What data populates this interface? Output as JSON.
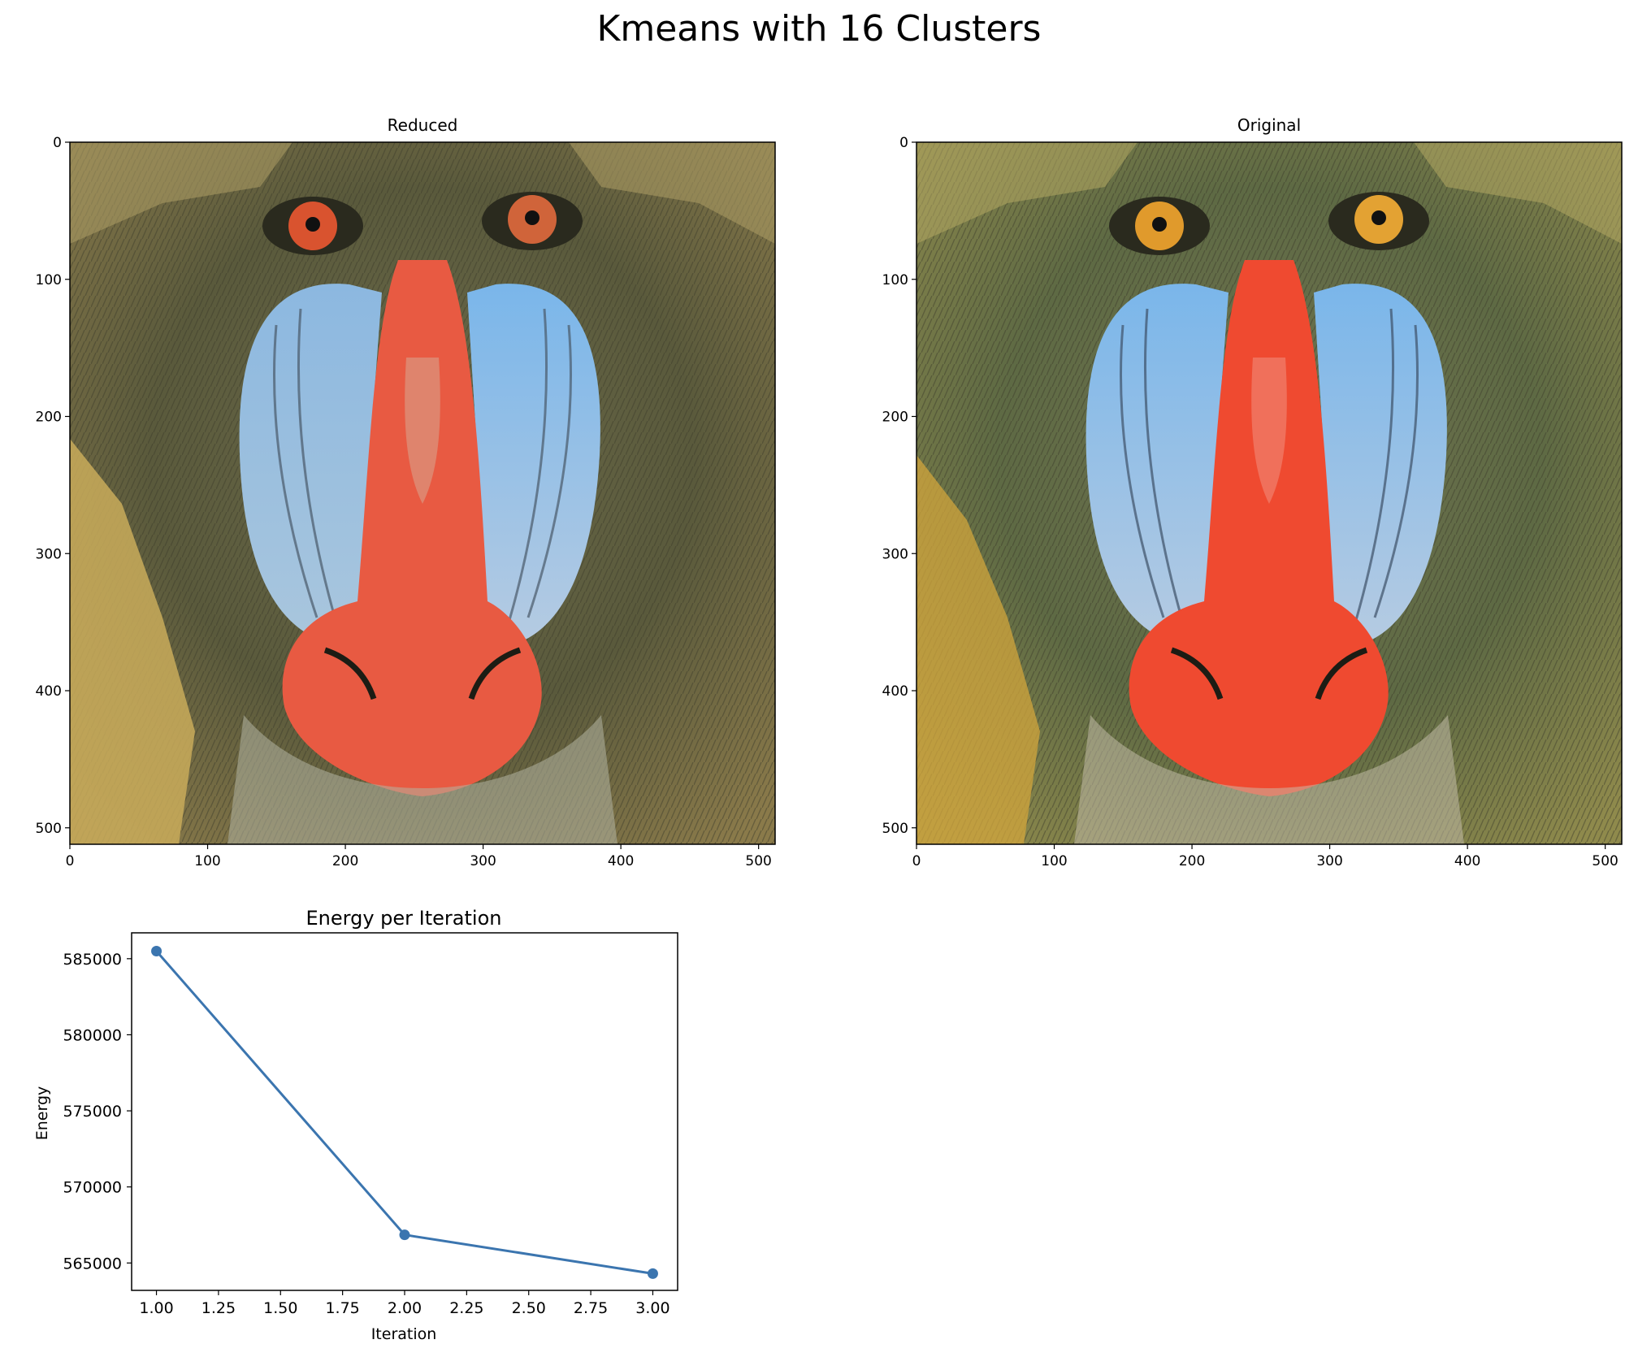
{
  "figure": {
    "title": "Kmeans with 16 Clusters"
  },
  "panels": {
    "reduced": {
      "title": "Reduced",
      "xticks": [
        "0",
        "100",
        "200",
        "300",
        "400",
        "500"
      ],
      "yticks": [
        "0",
        "100",
        "200",
        "300",
        "400",
        "500"
      ],
      "image_extent": [
        0,
        512
      ]
    },
    "original": {
      "title": "Original",
      "xticks": [
        "0",
        "100",
        "200",
        "300",
        "400",
        "500"
      ],
      "yticks": [
        "0",
        "100",
        "200",
        "300",
        "400",
        "500"
      ],
      "image_extent": [
        0,
        512
      ]
    }
  },
  "chart_data": {
    "type": "line",
    "title": "Energy per Iteration",
    "xlabel": "Iteration",
    "ylabel": "Energy",
    "x": [
      1.0,
      2.0,
      3.0
    ],
    "series": [
      {
        "values": [
          585500,
          566850,
          564300
        ],
        "color": "#3b75af",
        "marker": "circle"
      }
    ],
    "xlim": [
      0.9,
      3.1
    ],
    "ylim": [
      563200,
      586700
    ],
    "xticks": [
      "1.00",
      "1.25",
      "1.50",
      "1.75",
      "2.00",
      "2.25",
      "2.50",
      "2.75",
      "3.00"
    ],
    "yticks": [
      "565000",
      "570000",
      "575000",
      "580000",
      "585000"
    ],
    "grid": false
  }
}
